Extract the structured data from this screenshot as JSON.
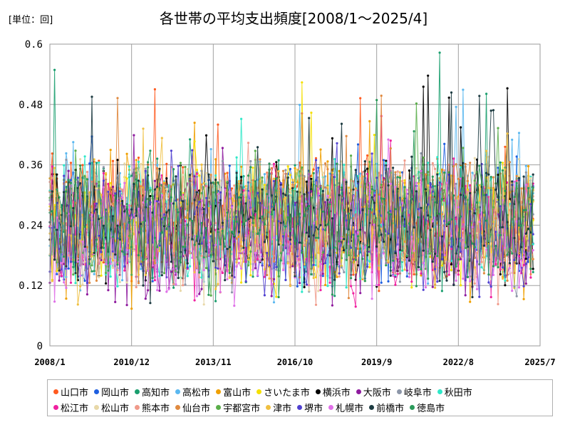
{
  "chart_data": {
    "type": "line",
    "title": "各世帯の平均支出頻度[2008/1～2025/4]",
    "unit_label": "[単位：回]",
    "xlabel": "",
    "ylabel": "",
    "x_start": "2008-01",
    "x_end": "2025-07",
    "x_ticks": [
      "2008/1",
      "2010/12",
      "2013/11",
      "2016/10",
      "2019/9",
      "2022/8",
      "2025/7"
    ],
    "ylim": [
      0,
      0.6
    ],
    "y_ticks": [
      0,
      0.12,
      0.24,
      0.36,
      0.48,
      0.6
    ],
    "y_tick_labels": [
      "0",
      "0.12",
      "0.24",
      "0.36",
      "0.48",
      "0.6"
    ],
    "grid": true,
    "legend_position": "bottom",
    "series_note": "monthly values per city; dense overlapping series mostly between 0.08 and 0.45",
    "series": [
      {
        "name": "山口市",
        "color": "#ff5a1f",
        "mean": 0.255,
        "min": 0.07,
        "max": 0.53
      },
      {
        "name": "岡山市",
        "color": "#1f5fe0",
        "mean": 0.245,
        "min": 0.07,
        "max": 0.44
      },
      {
        "name": "高知市",
        "color": "#1a9e6e",
        "mean": 0.25,
        "min": 0.06,
        "max": 0.6
      },
      {
        "name": "高松市",
        "color": "#5bb8f0",
        "mean": 0.25,
        "min": 0.08,
        "max": 0.51
      },
      {
        "name": "富山市",
        "color": "#f0a000",
        "mean": 0.245,
        "min": 0.06,
        "max": 0.47
      },
      {
        "name": "さいたま市",
        "color": "#f5e000",
        "mean": 0.25,
        "min": 0.09,
        "max": 0.54
      },
      {
        "name": "横浜市",
        "color": "#000000",
        "mean": 0.245,
        "min": 0.09,
        "max": 0.54
      },
      {
        "name": "大阪市",
        "color": "#8e1a9e",
        "mean": 0.22,
        "min": 0.07,
        "max": 0.43
      },
      {
        "name": "岐阜市",
        "color": "#8c96a8",
        "mean": 0.245,
        "min": 0.08,
        "max": 0.46
      },
      {
        "name": "秋田市",
        "color": "#2ee8c8",
        "mean": 0.245,
        "min": 0.06,
        "max": 0.46
      },
      {
        "name": "松江市",
        "color": "#f020a0",
        "mean": 0.235,
        "min": 0.07,
        "max": 0.47
      },
      {
        "name": "松山市",
        "color": "#e8d8a8",
        "mean": 0.24,
        "min": 0.08,
        "max": 0.44
      },
      {
        "name": "熊本市",
        "color": "#f09a8a",
        "mean": 0.245,
        "min": 0.08,
        "max": 0.46
      },
      {
        "name": "仙台市",
        "color": "#e08a40",
        "mean": 0.25,
        "min": 0.08,
        "max": 0.5
      },
      {
        "name": "宇都宮市",
        "color": "#5aae4a",
        "mean": 0.255,
        "min": 0.08,
        "max": 0.5
      },
      {
        "name": "津市",
        "color": "#f0c040",
        "mean": 0.245,
        "min": 0.08,
        "max": 0.46
      },
      {
        "name": "堺市",
        "color": "#5040d0",
        "mean": 0.23,
        "min": 0.07,
        "max": 0.44
      },
      {
        "name": "札幌市",
        "color": "#e070e8",
        "mean": 0.225,
        "min": 0.07,
        "max": 0.45
      },
      {
        "name": "前橋市",
        "color": "#1c3a40",
        "mean": 0.25,
        "min": 0.08,
        "max": 0.53
      },
      {
        "name": "徳島市",
        "color": "#2a9a5a",
        "mean": 0.25,
        "min": 0.07,
        "max": 0.5
      }
    ]
  }
}
